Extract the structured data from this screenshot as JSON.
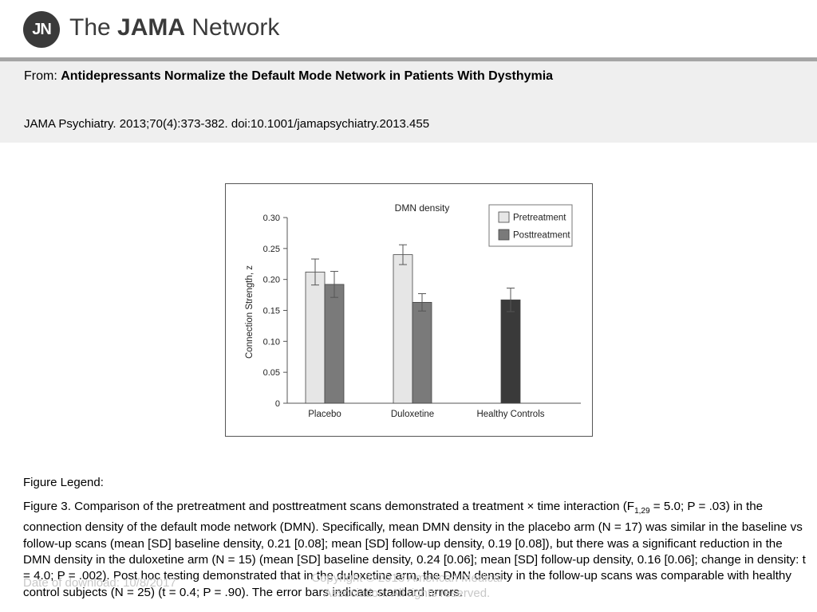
{
  "header": {
    "logo_mark": "JN",
    "brand_light": "The ",
    "brand_bold": "JAMA",
    "brand_rest": " Network"
  },
  "article": {
    "from_label": "From: ",
    "title": "Antidepressants Normalize the Default Mode Network in Patients With Dysthymia",
    "citation": "JAMA Psychiatry. 2013;70(4):373-382. doi:10.1001/jamapsychiatry.2013.455"
  },
  "colors": {
    "pretreatment": "#e6e6e6",
    "posttreatment": "#7a7a7a",
    "healthy": "#3a3a3a",
    "infobox": "#efefef",
    "band": "#a5a5a5"
  },
  "chart_data": {
    "type": "bar",
    "title": "DMN density",
    "ylabel": "Connection Strength, z",
    "xlabel": "",
    "ylim": [
      0,
      0.3
    ],
    "yticks": [
      "0",
      "0.05",
      "0.10",
      "0.15",
      "0.20",
      "0.25",
      "0.30"
    ],
    "ytick_values": [
      0,
      0.05,
      0.1,
      0.15,
      0.2,
      0.25,
      0.3
    ],
    "categories": [
      "Placebo",
      "Duloxetine",
      "Healthy Controls"
    ],
    "series": [
      {
        "name": "Pretreatment",
        "values": [
          0.212,
          0.24,
          null
        ],
        "errors": [
          0.021,
          0.016,
          null
        ]
      },
      {
        "name": "Posttreatment",
        "values": [
          0.192,
          0.163,
          0.167
        ],
        "errors": [
          0.021,
          0.014,
          0.019
        ]
      }
    ],
    "legend_position": "top-right",
    "grid": false
  },
  "legend_heading": "Figure Legend:",
  "caption": {
    "part1": "Figure 3. Comparison of the pretreatment and posttreatment scans demonstrated a treatment  ×  time interaction (F",
    "subscript": "1,29",
    "part2": " = 5.0; P = .03) in the connection density of the default mode network (DMN). Specifically, mean DMN density in the placebo arm (N = 17) was similar in the baseline vs follow-up scans (mean [SD] baseline density, 0.21 [0.08]; mean [SD] follow-up density, 0.19 [0.08]), but there was a significant reduction in the DMN density in the duloxetine arm (N = 15) (mean [SD] baseline density, 0.24 [0.06]; mean [SD] follow-up density, 0.16 [0.06]; change in density: t = 4.0; P = .002). Post hoc testing demonstrated that in the duloxetine arm, the DMN density in the follow-up scans was comparable with healthy control subjects (N = 25) (t = 0.4; P = .90). The error bars indicate standard errors."
  },
  "footer": {
    "date": "Date of download:  10/8/2017",
    "copyright": "Copyright © 2013 American Medical Association. All rights reserved."
  }
}
